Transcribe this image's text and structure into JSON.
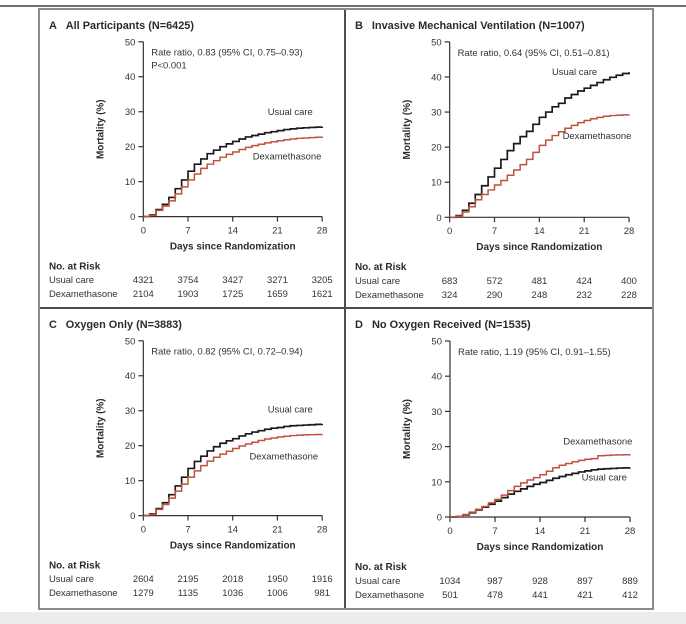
{
  "figure": {
    "x_axis_label": "Days since Randomization",
    "y_axis_label": "Mortality (%)",
    "no_at_risk_header": "No. at Risk",
    "colors": {
      "usual_care": "#1a1a1a",
      "dexamethasone": "#c0523d",
      "axis": "#333333",
      "frame_border": "#8c8c8c",
      "panel_divider": "#4d4d4d"
    }
  },
  "chart_data": [
    {
      "type": "line",
      "subtype": "cumulative-incidence-step",
      "panel": "A",
      "title": "All Participants (N=6425)",
      "annotations": [
        "Rate ratio, 0.83 (95% CI, 0.75–0.93)",
        "P<0.001"
      ],
      "xlabel": "Days since Randomization",
      "ylabel": "Mortality (%)",
      "xlim": [
        0,
        28
      ],
      "ylim": [
        0,
        50
      ],
      "x_ticks": [
        0,
        7,
        14,
        21,
        28
      ],
      "y_ticks": [
        0,
        10,
        20,
        30,
        40,
        50
      ],
      "x_unit": "day",
      "x_step": 1,
      "at_risk_header": "No. at Risk",
      "series": [
        {
          "key": "usual-care",
          "name": "Usual care",
          "color": "#1a1a1a",
          "stroke_width": 1.7,
          "label_pos": {
            "day": 23,
            "pct": 29
          },
          "at_risk": [
            4321,
            3754,
            3427,
            3271,
            3205
          ],
          "values": [
            0,
            0.5,
            2,
            3.5,
            5.5,
            8,
            10.5,
            13,
            15,
            16.5,
            18,
            19,
            20,
            20.8,
            21.5,
            22.2,
            22.8,
            23.2,
            23.6,
            24,
            24.3,
            24.6,
            24.9,
            25.1,
            25.3,
            25.4,
            25.5,
            25.6,
            25.7
          ]
        },
        {
          "key": "dexamethasone",
          "name": "Dexamethasone",
          "color": "#c0523d",
          "stroke_width": 1.5,
          "label_pos": {
            "day": 22.5,
            "pct": 16.3
          },
          "at_risk": [
            2104,
            1903,
            1725,
            1659,
            1621
          ],
          "values": [
            0,
            0.4,
            1.8,
            3,
            4.5,
            6.5,
            8.5,
            10.5,
            12.2,
            13.8,
            15,
            16,
            17,
            17.8,
            18.5,
            19.2,
            19.8,
            20.3,
            20.7,
            21.1,
            21.4,
            21.7,
            22,
            22.2,
            22.4,
            22.5,
            22.6,
            22.7,
            22.9
          ]
        }
      ]
    },
    {
      "type": "line",
      "subtype": "cumulative-incidence-step",
      "panel": "B",
      "title": "Invasive Mechanical Ventilation (N=1007)",
      "annotations": [
        "Rate ratio, 0.64 (95% CI, 0.51–0.81)"
      ],
      "xlabel": "Days since Randomization",
      "ylabel": "Mortality (%)",
      "xlim": [
        0,
        28
      ],
      "ylim": [
        0,
        50
      ],
      "x_ticks": [
        0,
        7,
        14,
        21,
        28
      ],
      "y_ticks": [
        0,
        10,
        20,
        30,
        40,
        50
      ],
      "x_unit": "day",
      "x_step": 1,
      "at_risk_header": "No. at Risk",
      "series": [
        {
          "key": "usual-care",
          "name": "Usual care",
          "color": "#1a1a1a",
          "stroke_width": 1.7,
          "label_pos": {
            "day": 19.5,
            "pct": 40.5
          },
          "at_risk": [
            683,
            572,
            481,
            424,
            400
          ],
          "values": [
            0,
            0.5,
            2,
            4,
            6.5,
            9,
            11.5,
            14,
            16.5,
            19,
            21,
            23,
            24.5,
            26.5,
            28.5,
            30,
            31.5,
            32.5,
            34,
            35,
            36,
            36.8,
            37.6,
            38.4,
            39.2,
            39.9,
            40.5,
            41,
            41.4
          ]
        },
        {
          "key": "dexamethasone",
          "name": "Dexamethasone",
          "color": "#c0523d",
          "stroke_width": 1.5,
          "label_pos": {
            "day": 23,
            "pct": 22.3
          },
          "at_risk": [
            324,
            290,
            248,
            232,
            228
          ],
          "values": [
            0,
            0.3,
            1.5,
            3,
            5,
            6.5,
            7.8,
            9.2,
            10.5,
            12,
            13.5,
            15,
            16.5,
            18.5,
            20.5,
            22,
            23.3,
            24.4,
            25.4,
            26.2,
            27,
            27.6,
            28.1,
            28.5,
            28.8,
            29,
            29.1,
            29.2,
            29.3
          ]
        }
      ]
    },
    {
      "type": "line",
      "subtype": "cumulative-incidence-step",
      "panel": "C",
      "title": "Oxygen Only (N=3883)",
      "annotations": [
        "Rate ratio, 0.82 (95% CI, 0.72–0.94)"
      ],
      "xlabel": "Days since Randomization",
      "ylabel": "Mortality (%)",
      "xlim": [
        0,
        28
      ],
      "ylim": [
        0,
        50
      ],
      "x_ticks": [
        0,
        7,
        14,
        21,
        28
      ],
      "y_ticks": [
        0,
        10,
        20,
        30,
        40,
        50
      ],
      "x_unit": "day",
      "x_step": 1,
      "at_risk_header": "No. at Risk",
      "series": [
        {
          "key": "usual-care",
          "name": "Usual care",
          "color": "#1a1a1a",
          "stroke_width": 1.7,
          "label_pos": {
            "day": 23,
            "pct": 29.5
          },
          "at_risk": [
            2604,
            2195,
            2018,
            1950,
            1916
          ],
          "values": [
            0,
            0.5,
            2,
            3.7,
            6,
            8.5,
            11,
            13.5,
            15.5,
            17,
            18.5,
            19.7,
            20.7,
            21.4,
            22,
            22.8,
            23.4,
            23.9,
            24.3,
            24.7,
            25,
            25.2,
            25.5,
            25.7,
            25.8,
            25.9,
            26,
            26.1,
            26.2
          ]
        },
        {
          "key": "dexamethasone",
          "name": "Dexamethasone",
          "color": "#c0523d",
          "stroke_width": 1.5,
          "label_pos": {
            "day": 22,
            "pct": 16
          },
          "at_risk": [
            1279,
            1135,
            1036,
            1006,
            981
          ],
          "values": [
            0,
            0.4,
            1.8,
            3.2,
            5,
            7,
            9,
            11,
            12.8,
            14.3,
            15.6,
            16.7,
            17.6,
            18.4,
            19.2,
            19.9,
            20.5,
            21,
            21.5,
            21.9,
            22.2,
            22.5,
            22.7,
            22.9,
            23,
            23.1,
            23.15,
            23.2,
            23.3
          ]
        }
      ]
    },
    {
      "type": "line",
      "subtype": "cumulative-incidence-step",
      "panel": "D",
      "title": "No Oxygen Received (N=1535)",
      "annotations": [
        "Rate ratio, 1.19 (95% CI, 0.91–1.55)"
      ],
      "xlabel": "Days since Randomization",
      "ylabel": "Mortality (%)",
      "xlim": [
        0,
        28
      ],
      "ylim": [
        0,
        50
      ],
      "x_ticks": [
        0,
        7,
        14,
        21,
        28
      ],
      "y_ticks": [
        0,
        10,
        20,
        30,
        40,
        50
      ],
      "x_unit": "day",
      "x_step": 1,
      "at_risk_header": "No. at Risk",
      "series": [
        {
          "key": "usual-care",
          "name": "Usual care",
          "color": "#1a1a1a",
          "stroke_width": 1.7,
          "label_pos": {
            "day": 24,
            "pct": 10.3
          },
          "at_risk": [
            1034,
            987,
            928,
            897,
            889
          ],
          "values": [
            0,
            0.2,
            0.6,
            1.2,
            2,
            2.8,
            3.6,
            4.5,
            5.5,
            6.5,
            7.3,
            8,
            8.7,
            9.3,
            9.8,
            10.4,
            11,
            11.5,
            12,
            12.4,
            12.8,
            13.1,
            13.4,
            13.6,
            13.7,
            13.8,
            13.9,
            13.95,
            14
          ]
        },
        {
          "key": "dexamethasone",
          "name": "Dexamethasone",
          "color": "#c0523d",
          "stroke_width": 1.5,
          "label_pos": {
            "day": 23,
            "pct": 20.6
          },
          "at_risk": [
            501,
            478,
            441,
            421,
            412
          ],
          "values": [
            0,
            0.2,
            0.7,
            1.4,
            2.2,
            3,
            4,
            5,
            6.2,
            7.5,
            8.7,
            9.7,
            10.5,
            11.2,
            12,
            13,
            14,
            14.7,
            15.2,
            15.7,
            16.1,
            16.4,
            16.6,
            17.4,
            17.5,
            17.6,
            17.65,
            17.7,
            17.8
          ]
        }
      ]
    }
  ]
}
